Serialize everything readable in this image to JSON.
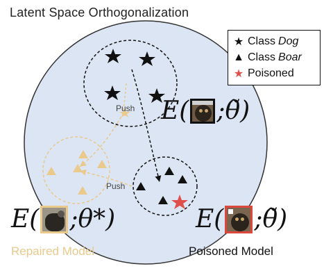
{
  "title": "Latent Space Orthogonalization",
  "legend": {
    "dog_label": "Class",
    "dog_em": "Dog",
    "boar_label": "Class",
    "boar_em": "Boar",
    "poisoned_label": "Poisoned"
  },
  "push_label_top": "Push",
  "push_label_bottom": "Push",
  "formula_poisoned_top": {
    "prefix": "E(",
    "suffix": ";θ̃)"
  },
  "formula_repaired": {
    "prefix": "E(",
    "suffix": ";θ*)"
  },
  "formula_poisoned_bottom": {
    "prefix": "E(",
    "suffix": ";θ̃)"
  },
  "caption_repaired": "Repaired Model",
  "caption_poisoned": "Poisoned Model",
  "colors": {
    "circle_fill": "#dce5f3",
    "repaired": "#e9c98c",
    "poisoned_star": "#e0504a",
    "poisoned_frame": "#d9483b",
    "dark": "#111111"
  },
  "icons": {
    "dog": "star",
    "boar": "triangle",
    "poisoned": "star-red"
  }
}
